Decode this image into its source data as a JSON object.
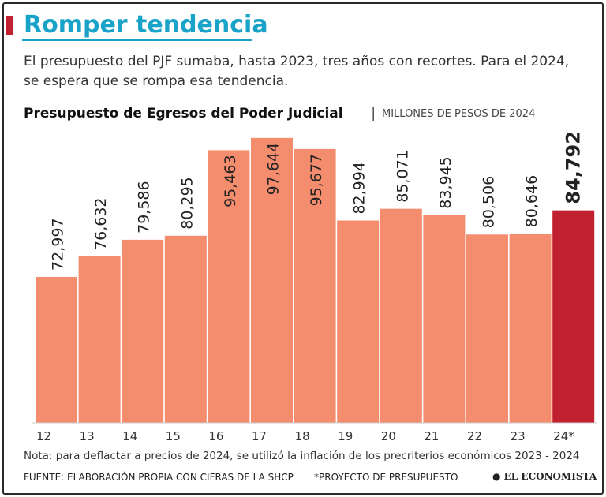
{
  "chart_data": {
    "type": "bar",
    "title": "Romper tendencia",
    "subtitle": "El presupuesto del PJF sumaba, hasta 2023, tres años con recortes. Para el 2024, se espera que se rompa esa tendencia.",
    "chart_title": "Presupuesto de Egresos del Poder Judicial",
    "unit": "MILLONES DE PESOS DE 2024",
    "categories": [
      "12",
      "13",
      "14",
      "15",
      "16",
      "17",
      "18",
      "19",
      "20",
      "21",
      "22",
      "23",
      "24*"
    ],
    "values": [
      72997,
      76632,
      79586,
      80295,
      95463,
      97644,
      95677,
      82994,
      85071,
      83945,
      80506,
      80646,
      84792
    ],
    "value_labels": [
      "72,997",
      "76,632",
      "79,586",
      "80,295",
      "95,463",
      "97,644",
      "95,677",
      "82,994",
      "85,071",
      "83,945",
      "80,506",
      "80,646",
      "84,792"
    ],
    "colors": [
      "#f48c6e",
      "#f48c6e",
      "#f48c6e",
      "#f48c6e",
      "#f48c6e",
      "#f48c6e",
      "#f48c6e",
      "#f48c6e",
      "#f48c6e",
      "#f48c6e",
      "#f48c6e",
      "#f48c6e",
      "#c1202e"
    ],
    "ylim": [
      47100,
      100000
    ],
    "note": "Nota: para deflactar a precios de 2024, se utilizó la inflación de los precriterios económicos 2023 - 2024",
    "source": "FUENTE: ELABORACIÓN PROPIA CON CIFRAS DE LA SHCP",
    "footnote": "*PROYECTO DE PRESUPUESTO",
    "logo": "EL ECONOMISTA"
  }
}
